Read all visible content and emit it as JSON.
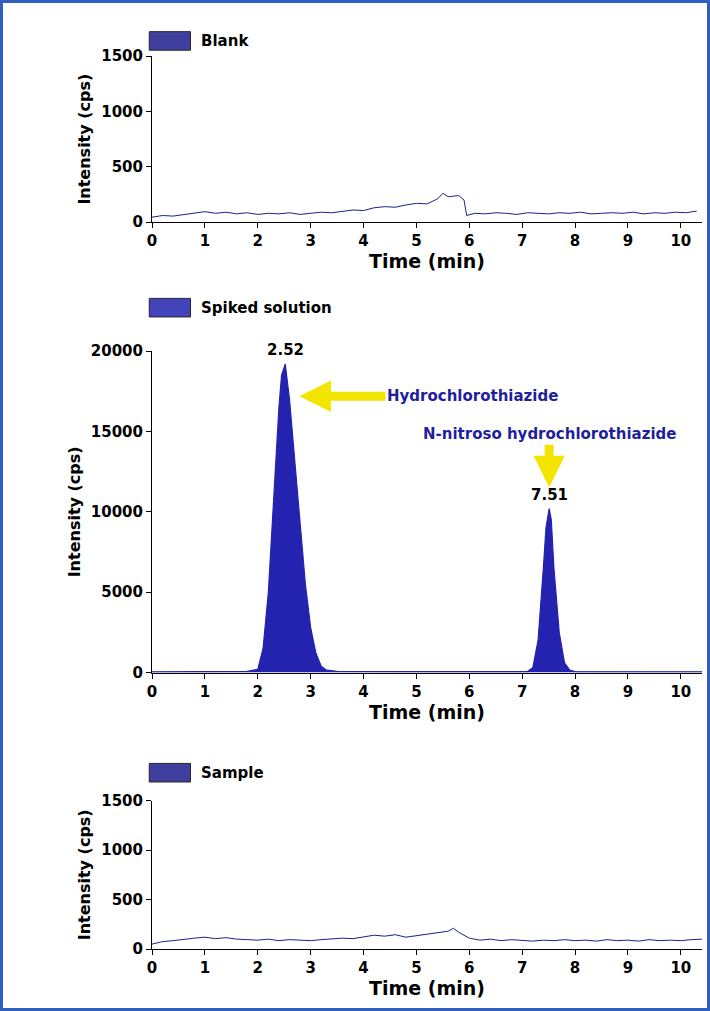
{
  "chart_data": [
    {
      "type": "line",
      "title": "Blank",
      "x_label": "Time (min)",
      "y_label": "Intensity (cps)",
      "color": "#1e1e8c",
      "grid": false,
      "xlim": [
        0,
        10.4
      ],
      "xticks": [
        0,
        1,
        2,
        3,
        4,
        5,
        6,
        7,
        8,
        9,
        10
      ],
      "ylim": [
        0,
        1500
      ],
      "yticks": [
        0,
        500,
        1000,
        1500
      ],
      "x": [
        0,
        0.2,
        0.4,
        0.6,
        0.8,
        1,
        1.2,
        1.4,
        1.6,
        1.8,
        2,
        2.2,
        2.4,
        2.6,
        2.8,
        3,
        3.2,
        3.4,
        3.6,
        3.8,
        4,
        4.2,
        4.4,
        4.6,
        4.8,
        5,
        5.2,
        5.4,
        5.5,
        5.6,
        5.8,
        5.9,
        5.95,
        6.1,
        6.3,
        6.5,
        6.7,
        6.9,
        7.1,
        7.3,
        7.5,
        7.7,
        7.9,
        8.1,
        8.3,
        8.5,
        8.7,
        8.9,
        9.1,
        9.3,
        9.5,
        9.7,
        9.9,
        10.1,
        10.3
      ],
      "values": [
        45,
        60,
        55,
        70,
        85,
        95,
        80,
        90,
        75,
        85,
        70,
        80,
        75,
        85,
        70,
        80,
        90,
        85,
        100,
        110,
        105,
        130,
        140,
        135,
        155,
        170,
        165,
        210,
        260,
        230,
        240,
        200,
        60,
        80,
        75,
        85,
        80,
        70,
        85,
        80,
        75,
        85,
        80,
        90,
        75,
        80,
        85,
        80,
        90,
        75,
        85,
        80,
        90,
        85,
        100
      ]
    },
    {
      "type": "area",
      "title": "Spiked solution",
      "x_label": "Time (min)",
      "y_label": "Intensity (cps)",
      "color": "#2323b0",
      "grid": false,
      "xlim": [
        0,
        10.4
      ],
      "xticks": [
        0,
        1,
        2,
        3,
        4,
        5,
        6,
        7,
        8,
        9,
        10
      ],
      "ylim": [
        0,
        20000
      ],
      "yticks": [
        0,
        5000,
        10000,
        15000,
        20000
      ],
      "x": [
        0,
        1,
        1.8,
        2.0,
        2.1,
        2.2,
        2.3,
        2.4,
        2.45,
        2.52,
        2.6,
        2.7,
        2.8,
        2.9,
        3.0,
        3.1,
        3.2,
        3.3,
        3.5,
        4.5,
        5.7,
        6.5,
        7.1,
        7.2,
        7.3,
        7.4,
        7.45,
        7.51,
        7.55,
        7.6,
        7.7,
        7.8,
        7.9,
        8.0,
        9,
        10.4
      ],
      "values": [
        50,
        60,
        70,
        200,
        1500,
        5000,
        11000,
        16500,
        18500,
        19200,
        17000,
        13000,
        9000,
        5500,
        2800,
        1200,
        400,
        150,
        80,
        70,
        60,
        50,
        60,
        300,
        2000,
        6500,
        9000,
        10200,
        9500,
        6500,
        2500,
        600,
        150,
        60,
        50,
        50
      ],
      "annotations": [
        {
          "text": "2.52",
          "x": 2.52,
          "y": 19200
        },
        {
          "text": "7.51",
          "x": 7.51,
          "y": 10200
        },
        {
          "text": "Hydrochlorothiazide",
          "x": 2.75,
          "y": 17200
        },
        {
          "text": "N-nitroso hydrochlorothiazide",
          "x": 7.51,
          "y": 11400
        }
      ]
    },
    {
      "type": "line",
      "title": "Sample",
      "x_label": "Time (min)",
      "y_label": "Intensity (cps)",
      "color": "#1e1e8c",
      "grid": false,
      "xlim": [
        0,
        10.4
      ],
      "xticks": [
        0,
        1,
        2,
        3,
        4,
        5,
        6,
        7,
        8,
        9,
        10
      ],
      "ylim": [
        0,
        1500
      ],
      "yticks": [
        0,
        500,
        1000,
        1500
      ],
      "x": [
        0,
        0.2,
        0.4,
        0.6,
        0.8,
        1,
        1.2,
        1.4,
        1.6,
        1.8,
        2,
        2.2,
        2.4,
        2.6,
        2.8,
        3,
        3.2,
        3.4,
        3.6,
        3.8,
        4,
        4.2,
        4.4,
        4.6,
        4.8,
        5,
        5.2,
        5.4,
        5.6,
        5.7,
        5.8,
        6,
        6.2,
        6.4,
        6.6,
        6.8,
        7,
        7.2,
        7.4,
        7.6,
        7.8,
        8,
        8.2,
        8.4,
        8.6,
        8.8,
        9,
        9.2,
        9.4,
        9.6,
        9.8,
        10,
        10.2,
        10.4
      ],
      "values": [
        50,
        75,
        85,
        100,
        110,
        120,
        105,
        115,
        100,
        95,
        90,
        100,
        85,
        95,
        90,
        85,
        95,
        100,
        110,
        105,
        120,
        140,
        130,
        145,
        120,
        135,
        150,
        170,
        180,
        210,
        170,
        110,
        90,
        100,
        85,
        95,
        90,
        80,
        90,
        85,
        95,
        85,
        90,
        80,
        95,
        85,
        90,
        80,
        95,
        85,
        90,
        85,
        95,
        100
      ]
    }
  ]
}
